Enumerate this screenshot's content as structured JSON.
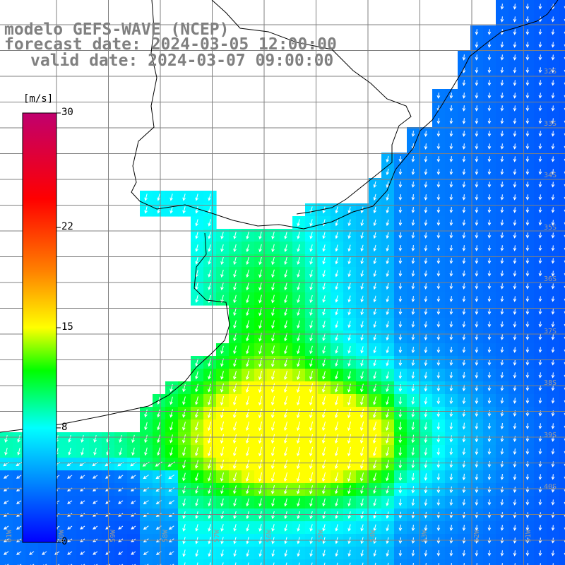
{
  "title": {
    "line1": "modelo GEFS-WAVE (NCEP)",
    "line2": "forecast date: 2024-03-05 12:00:00",
    "line3": "valid date: 2024-03-07 09:00:00"
  },
  "colorbar": {
    "unit": "[m/s]",
    "min": 0,
    "max": 30,
    "ticks": [
      {
        "label": "30",
        "value": 30
      },
      {
        "label": "22",
        "value": 22
      },
      {
        "label": "15",
        "value": 15
      },
      {
        "label": "8",
        "value": 8
      },
      {
        "label": "0",
        "value": 0
      }
    ],
    "stops": [
      {
        "value": 0,
        "color": "#0000ff"
      },
      {
        "value": 4,
        "color": "#0080ff"
      },
      {
        "value": 8,
        "color": "#00ffff"
      },
      {
        "value": 12,
        "color": "#00ff00"
      },
      {
        "value": 15,
        "color": "#ffff00"
      },
      {
        "value": 19,
        "color": "#ff8000"
      },
      {
        "value": 24,
        "color": "#ff0000"
      },
      {
        "value": 30,
        "color": "#c0006e"
      }
    ]
  },
  "lat_labels": [
    "32S",
    "33S",
    "34S",
    "35S",
    "36S",
    "37S",
    "38S",
    "39S",
    "40S"
  ],
  "lon_labels": [
    "61W",
    "60W",
    "59W",
    "58W",
    "57W",
    "56W",
    "55W",
    "54W",
    "53W",
    "52W",
    "51W"
  ],
  "colors": {
    "grid": "#808080",
    "coast": "#000000",
    "arrow": "#ffffff",
    "title": "#808080"
  }
}
